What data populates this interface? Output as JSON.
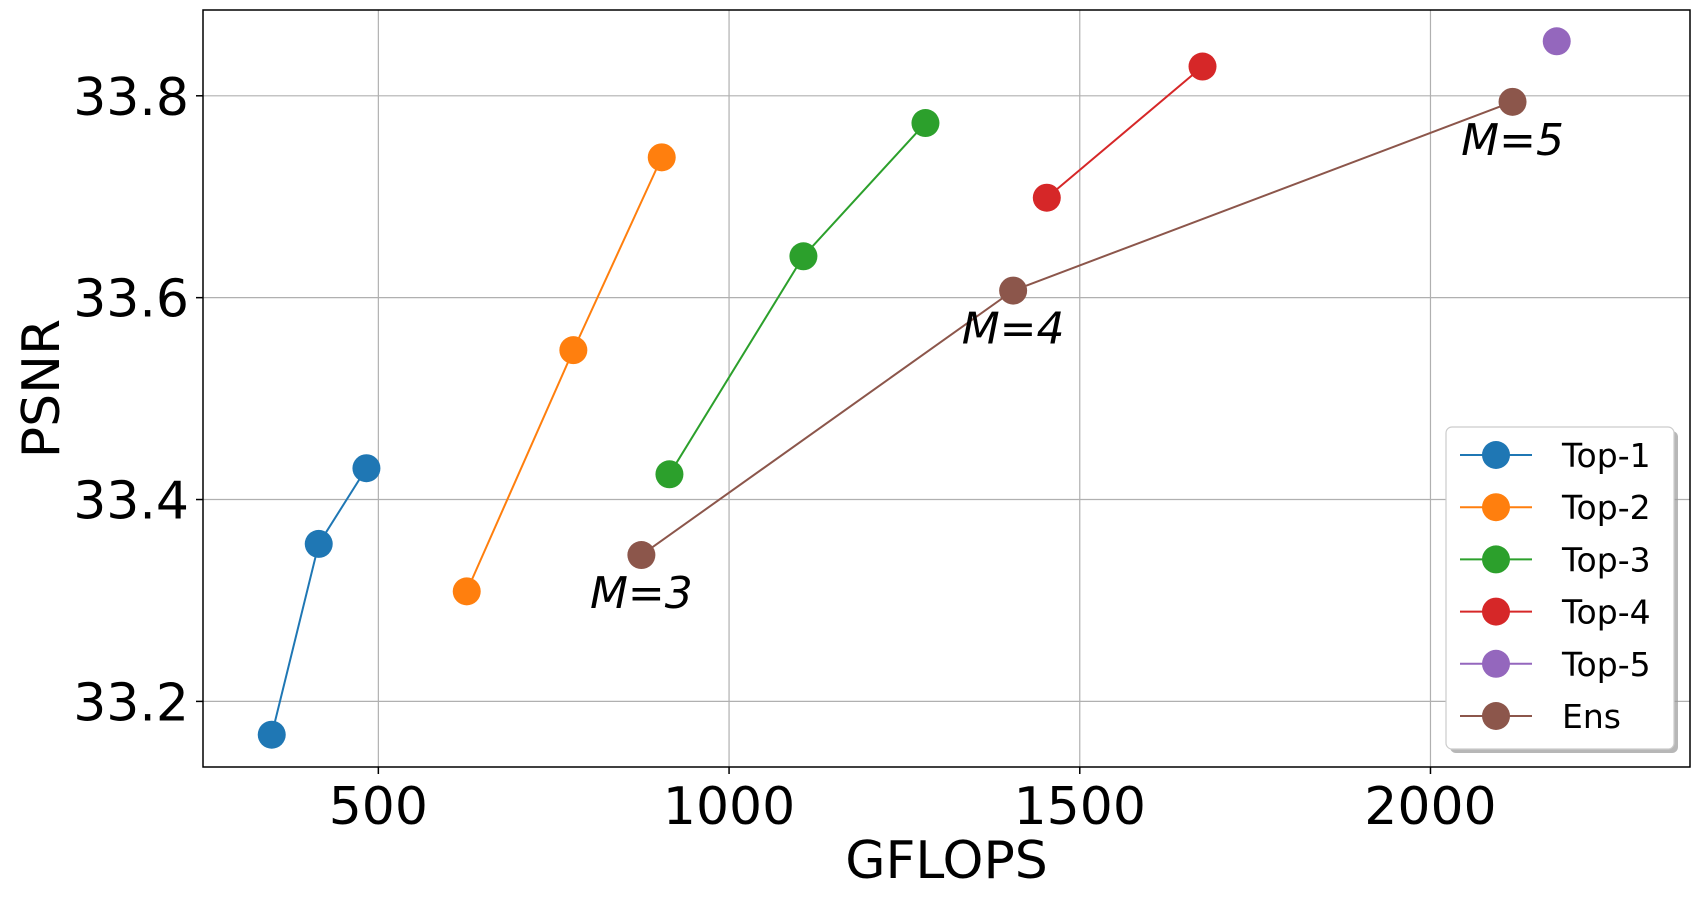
{
  "chart_data": {
    "type": "line",
    "xlabel": "GFLOPS",
    "ylabel": "PSNR",
    "xlim": [
      250,
      2370
    ],
    "ylim": [
      33.135,
      33.885
    ],
    "xticks": [
      500,
      1000,
      1500,
      2000
    ],
    "xtick_labels": [
      "500",
      "1000",
      "1500",
      "2000"
    ],
    "yticks": [
      33.2,
      33.4,
      33.6,
      33.8
    ],
    "ytick_labels": [
      "33.2",
      "33.4",
      "33.6",
      "33.8"
    ],
    "grid": true,
    "legend_position": "lower-right",
    "series": [
      {
        "name": "Top-1",
        "color": "#1f77b4",
        "x": [
          348,
          415,
          483
        ],
        "y": [
          33.167,
          33.356,
          33.431
        ]
      },
      {
        "name": "Top-2",
        "color": "#ff7f0e",
        "x": [
          626,
          778,
          904
        ],
        "y": [
          33.309,
          33.548,
          33.739
        ]
      },
      {
        "name": "Top-3",
        "color": "#2ca02c",
        "x": [
          915,
          1106,
          1280
        ],
        "y": [
          33.425,
          33.641,
          33.773
        ]
      },
      {
        "name": "Top-4",
        "color": "#d62728",
        "x": [
          1453,
          1675
        ],
        "y": [
          33.699,
          33.829
        ]
      },
      {
        "name": "Top-5",
        "color": "#9467bd",
        "x": [
          2180
        ],
        "y": [
          33.854
        ]
      },
      {
        "name": "Ens",
        "color": "#8c564b",
        "x": [
          875,
          1405,
          2117
        ],
        "y": [
          33.345,
          33.607,
          33.794
        ]
      }
    ],
    "annotations": [
      {
        "text": "M=3",
        "x": 875,
        "y": 33.345
      },
      {
        "text": "M=4",
        "x": 1405,
        "y": 33.607
      },
      {
        "text": "M=5",
        "x": 2117,
        "y": 33.794
      }
    ]
  }
}
